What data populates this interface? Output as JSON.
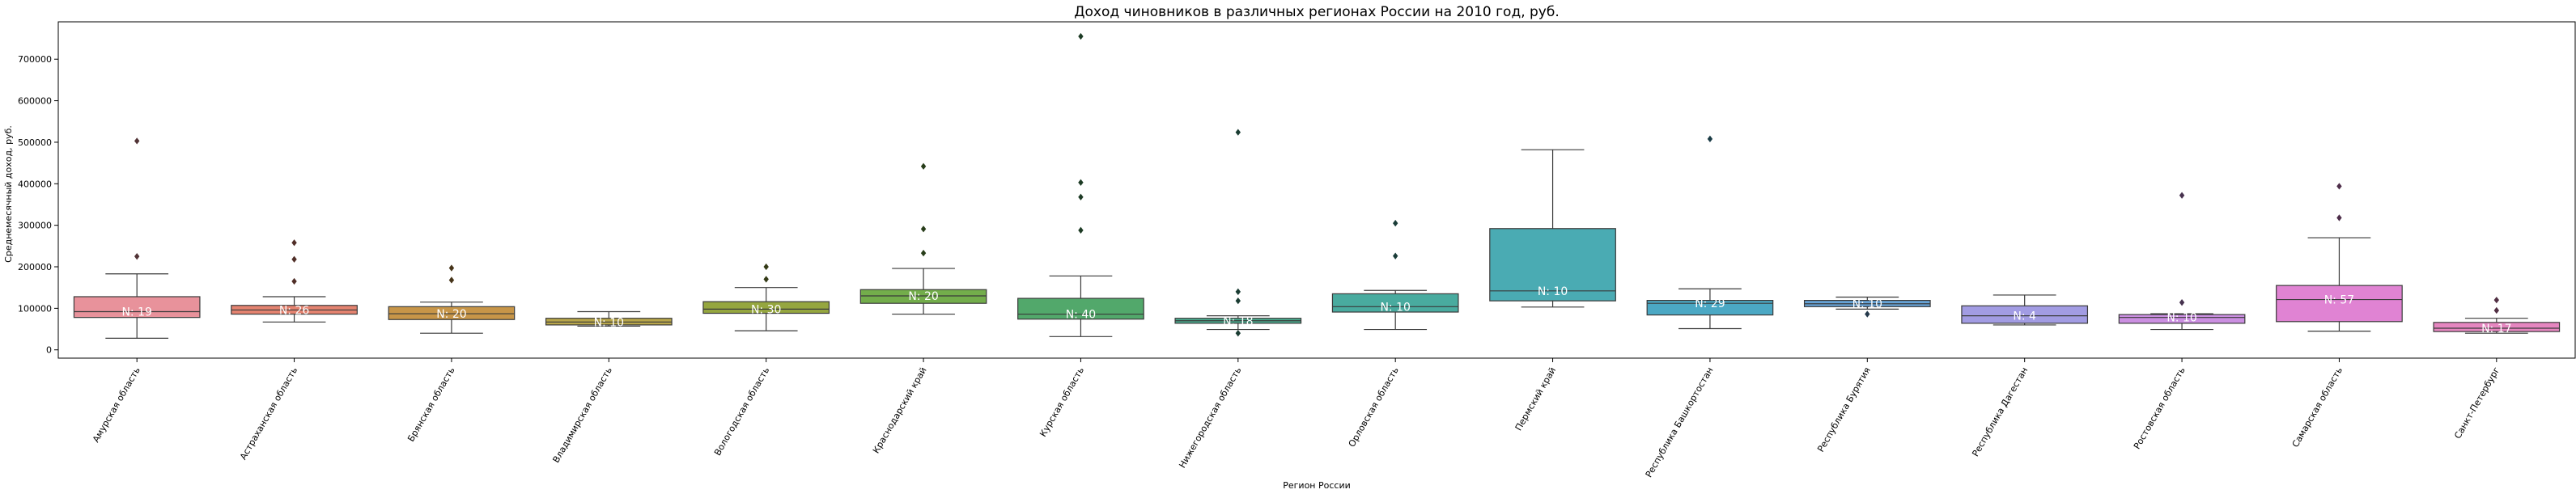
{
  "chart_data": {
    "type": "box",
    "title": "Доход чиновников в различных регионах России на 2010 год, руб.",
    "xlabel": "Регион России",
    "ylabel": "Среднемесячный доход, руб.",
    "ylim": [
      -20000,
      790000
    ],
    "yticks": [
      0,
      100000,
      200000,
      300000,
      400000,
      500000,
      600000,
      700000
    ],
    "ytick_labels": [
      "0",
      "100000",
      "200000",
      "300000",
      "400000",
      "500000",
      "600000",
      "700000"
    ],
    "grid": false,
    "legend": "none",
    "categories": [
      "Амурская область",
      "Астраханская область",
      "Брянская область",
      "Владимирская область",
      "Вологодская область",
      "Краснодарский край",
      "Курская область",
      "Нижегородская область",
      "Орловская область",
      "Пермский край",
      "Республика Башкортостан",
      "Республика Бурятия",
      "Республика Дагестан",
      "Ростовская область",
      "Самарская область",
      "Санкт-Петербург"
    ],
    "colors": [
      "#e8929b",
      "#e48370",
      "#c79548",
      "#b8a64a",
      "#95a63f",
      "#73ad4b",
      "#52a86b",
      "#4aab8e",
      "#49ab9f",
      "#4aabb3",
      "#4ba8c4",
      "#66a2d5",
      "#a29ce3",
      "#cb8fe1",
      "#e083d3",
      "#e686c0"
    ],
    "n_labels": [
      "N: 19",
      "N: 26",
      "N: 20",
      "N: 10",
      "N: 30",
      "N: 20",
      "N: 40",
      "N: 18",
      "N: 10",
      "N: 10",
      "N: 29",
      "N: 10",
      "N: 4",
      "N: 10",
      "N: 57",
      "N: 17"
    ],
    "boxes": [
      {
        "whislo": 28000,
        "q1": 78000,
        "med": 92000,
        "q3": 128000,
        "whishi": 183000,
        "fliers": [
          225000,
          503000
        ]
      },
      {
        "whislo": 67000,
        "q1": 86000,
        "med": 96000,
        "q3": 107000,
        "whishi": 128000,
        "fliers": [
          165000,
          218000,
          258000
        ]
      },
      {
        "whislo": 40000,
        "q1": 73000,
        "med": 87000,
        "q3": 104000,
        "whishi": 115000,
        "fliers": [
          168000,
          197000
        ]
      },
      {
        "whislo": 57000,
        "q1": 60000,
        "med": 67000,
        "q3": 76000,
        "whishi": 92000,
        "fliers": []
      },
      {
        "whislo": 46000,
        "q1": 88000,
        "med": 98000,
        "q3": 116000,
        "whishi": 150000,
        "fliers": [
          170000,
          200000
        ]
      },
      {
        "whislo": 86000,
        "q1": 112000,
        "med": 130000,
        "q3": 145000,
        "whishi": 196000,
        "fliers": [
          233000,
          291000,
          442000
        ]
      },
      {
        "whislo": 32000,
        "q1": 74000,
        "med": 86000,
        "q3": 124000,
        "whishi": 178000,
        "fliers": [
          288000,
          368000,
          403000,
          755000
        ]
      },
      {
        "whislo": 49000,
        "q1": 64000,
        "med": 70000,
        "q3": 76000,
        "whishi": 82000,
        "fliers": [
          40000,
          118000,
          140000,
          524000
        ]
      },
      {
        "whislo": 49000,
        "q1": 91000,
        "med": 104000,
        "q3": 135000,
        "whishi": 143000,
        "fliers": [
          226000,
          305000
        ]
      },
      {
        "whislo": 103000,
        "q1": 118000,
        "med": 142000,
        "q3": 292000,
        "whishi": 482000,
        "fliers": []
      },
      {
        "whislo": 51000,
        "q1": 84000,
        "med": 112000,
        "q3": 119000,
        "whishi": 147000,
        "fliers": [
          508000
        ]
      },
      {
        "whislo": 98000,
        "q1": 104000,
        "med": 111000,
        "q3": 119000,
        "whishi": 127000,
        "fliers": [
          86000
        ]
      },
      {
        "whislo": 60000,
        "q1": 64000,
        "med": 82000,
        "q3": 106000,
        "whishi": 132000,
        "fliers": []
      },
      {
        "whislo": 49000,
        "q1": 64000,
        "med": 78000,
        "q3": 85000,
        "whishi": 87000,
        "fliers": [
          114000,
          372000
        ]
      },
      {
        "whislo": 45000,
        "q1": 68000,
        "med": 121000,
        "q3": 155000,
        "whishi": 270000,
        "fliers": [
          318000,
          394000
        ]
      },
      {
        "whislo": 40000,
        "q1": 44000,
        "med": 52000,
        "q3": 66000,
        "whishi": 76000,
        "fliers": [
          95000,
          120000
        ]
      }
    ]
  }
}
